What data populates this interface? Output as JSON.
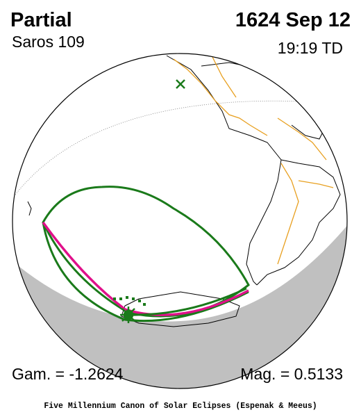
{
  "header": {
    "title": "Partial",
    "saros": "Saros 109",
    "date": "1624 Sep 12",
    "time": "19:19 TD"
  },
  "footer": {
    "gamma": "Gam. = -1.2624",
    "magnitude": "Mag. = 0.5133",
    "credit": "Five Millennium Canon of Solar Eclipses (Espenak & Meeus)"
  }
}
